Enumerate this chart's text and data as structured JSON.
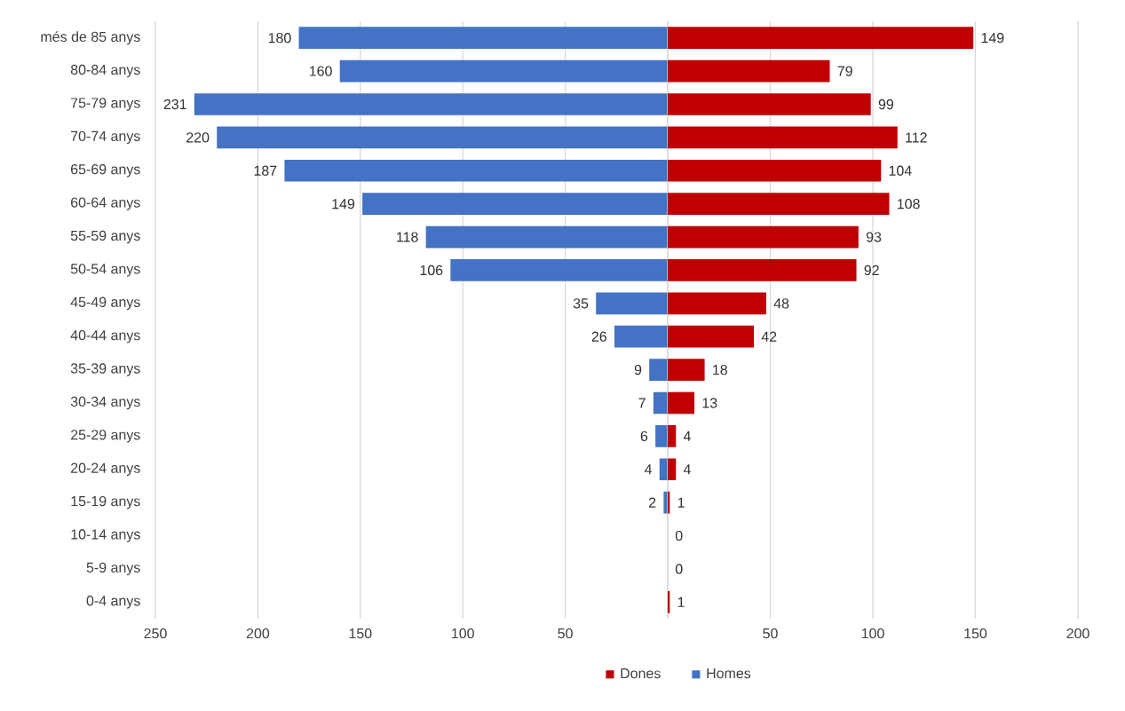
{
  "chart_data": [
    {
      "type": "bar",
      "orientation": "horizontal",
      "grid": "x",
      "legend": "bottom",
      "categories": [
        "més de 85 anys",
        "80-84 anys",
        "75-79 anys",
        "70-74 anys",
        "65-69 anys",
        "60-64 anys",
        "55-59 anys",
        "50-54 anys",
        "45-49 anys",
        "40-44 anys",
        "35-39 anys",
        "30-34 anys",
        "25-29 anys",
        "20-24 anys",
        "15-19 anys",
        "10-14 anys",
        "5-9 anys",
        "0-4 anys"
      ],
      "series": [
        {
          "name": "Homes",
          "color": "#4472c4",
          "values": [
            180,
            160,
            231,
            220,
            187,
            149,
            118,
            106,
            35,
            26,
            9,
            7,
            6,
            4,
            2,
            null,
            null,
            null
          ],
          "value_labels": [
            "180",
            "160",
            "231",
            "220",
            "187",
            "149",
            "118",
            "106",
            "35",
            "26",
            "9",
            "7",
            "6",
            "4",
            "2",
            null,
            null,
            null
          ]
        }
      ],
      "xlim": [
        250,
        0
      ],
      "xticks": [
        250,
        200,
        150,
        100,
        50,
        {
          "value": 0,
          "label": null
        }
      ]
    },
    {
      "type": "bar",
      "orientation": "horizontal",
      "grid": "x",
      "legend": "bottom",
      "tick_labels": "x",
      "categories": [
        null,
        null,
        null,
        null,
        null,
        null,
        null,
        null,
        null,
        null,
        null,
        null,
        null,
        null,
        null,
        null,
        null,
        null
      ],
      "series": [
        {
          "name": "Dones",
          "color": "#c00000",
          "values": [
            149,
            79,
            99,
            112,
            104,
            108,
            93,
            92,
            48,
            42,
            18,
            13,
            4,
            4,
            1,
            0,
            0,
            1
          ],
          "value_labels": [
            "149",
            "79",
            "99",
            "112",
            "104",
            "108",
            "93",
            "92",
            "48",
            "42",
            "18",
            "13",
            "4",
            "4",
            "1",
            "0",
            "0",
            "1"
          ]
        }
      ],
      "xlim": [
        0,
        200
      ],
      "xticks": [
        {
          "value": 0,
          "label": null
        },
        50,
        100,
        150,
        200
      ]
    }
  ]
}
